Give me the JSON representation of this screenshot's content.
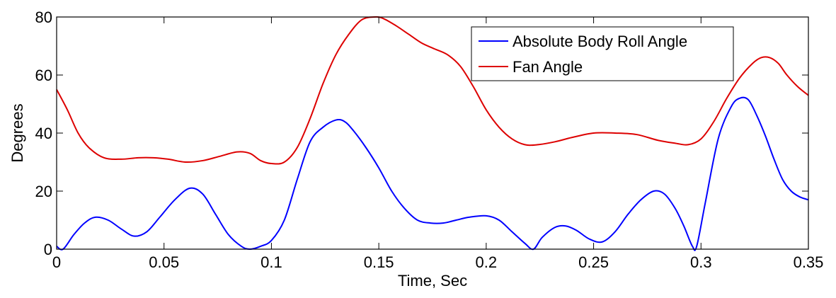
{
  "chart_data": {
    "type": "line",
    "title": "",
    "xlabel": "Time, Sec",
    "ylabel": "Degrees",
    "xlim": [
      0,
      0.35
    ],
    "ylim": [
      0,
      80
    ],
    "x_ticks": [
      0,
      0.05,
      0.1,
      0.15,
      0.2,
      0.25,
      0.3,
      0.35
    ],
    "x_tick_labels": [
      "0",
      "0.05",
      "0.1",
      "0.15",
      "0.2",
      "0.25",
      "0.3",
      "0.35"
    ],
    "y_ticks": [
      0,
      20,
      40,
      60,
      80
    ],
    "y_tick_labels": [
      "0",
      "20",
      "40",
      "60",
      "80"
    ],
    "grid": false,
    "legend_position": "top-right",
    "series": [
      {
        "name": "Absolute Body Roll Angle",
        "color": "#0000ff",
        "x": [
          0,
          0.003,
          0.008,
          0.013,
          0.018,
          0.024,
          0.03,
          0.036,
          0.042,
          0.048,
          0.055,
          0.062,
          0.068,
          0.074,
          0.08,
          0.086,
          0.09,
          0.095,
          0.1,
          0.106,
          0.112,
          0.118,
          0.124,
          0.13,
          0.134,
          0.138,
          0.144,
          0.15,
          0.156,
          0.162,
          0.168,
          0.174,
          0.18,
          0.186,
          0.192,
          0.2,
          0.206,
          0.212,
          0.218,
          0.222,
          0.226,
          0.232,
          0.237,
          0.242,
          0.248,
          0.254,
          0.26,
          0.266,
          0.272,
          0.278,
          0.283,
          0.288,
          0.292,
          0.296,
          0.298,
          0.302,
          0.308,
          0.314,
          0.318,
          0.322,
          0.326,
          0.33,
          0.334,
          0.338,
          0.342,
          0.346,
          0.35
        ],
        "y": [
          1,
          0,
          5,
          9,
          11,
          10,
          7,
          4.5,
          6,
          11,
          17,
          21,
          19,
          12,
          5,
          1,
          0,
          1,
          3,
          10,
          24,
          37,
          42,
          44.5,
          44,
          41,
          35,
          28,
          20,
          14,
          10,
          9,
          9,
          10,
          11,
          11.5,
          10,
          6,
          2,
          0,
          4,
          7.5,
          8,
          6.5,
          3.5,
          2.5,
          6,
          12,
          17,
          20,
          19,
          14,
          8,
          1,
          1,
          16,
          38,
          49,
          52,
          51.5,
          46,
          39,
          31,
          24,
          20,
          18,
          17
        ]
      },
      {
        "name": "Fan Angle",
        "color": "#dd0000",
        "x": [
          0,
          0.005,
          0.01,
          0.015,
          0.022,
          0.03,
          0.038,
          0.045,
          0.052,
          0.06,
          0.068,
          0.076,
          0.084,
          0.09,
          0.095,
          0.1,
          0.106,
          0.112,
          0.118,
          0.124,
          0.13,
          0.136,
          0.142,
          0.148,
          0.152,
          0.158,
          0.164,
          0.17,
          0.176,
          0.182,
          0.188,
          0.194,
          0.2,
          0.206,
          0.212,
          0.218,
          0.224,
          0.232,
          0.24,
          0.25,
          0.26,
          0.27,
          0.28,
          0.288,
          0.294,
          0.3,
          0.306,
          0.312,
          0.318,
          0.324,
          0.328,
          0.332,
          0.336,
          0.34,
          0.345,
          0.35
        ],
        "y": [
          55,
          48,
          40,
          35,
          31.5,
          31,
          31.5,
          31.5,
          31,
          30,
          30.5,
          32,
          33.5,
          33,
          30.5,
          29.5,
          30,
          35,
          45,
          57,
          67,
          74,
          79,
          80,
          79.5,
          77,
          74,
          71,
          69,
          67,
          63,
          56,
          48,
          42,
          38,
          36,
          36,
          37,
          38.5,
          40,
          40,
          39.5,
          37.5,
          36.5,
          36,
          38,
          44,
          52,
          59,
          64,
          66,
          66,
          64,
          60,
          56,
          53
        ]
      }
    ]
  }
}
